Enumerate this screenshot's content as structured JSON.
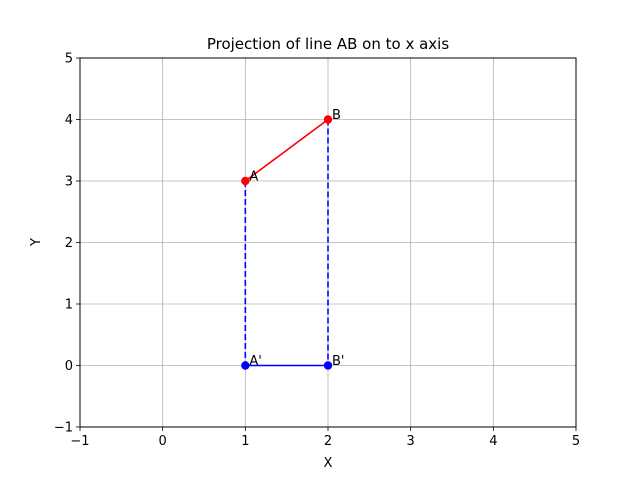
{
  "chart_data": {
    "type": "line",
    "title": "Projection of  line AB on to x axis",
    "xlabel": "X",
    "ylabel": "Y",
    "xlim": [
      -1,
      5
    ],
    "ylim": [
      -1,
      5
    ],
    "xticks": [
      "−1",
      "0",
      "1",
      "2",
      "3",
      "4",
      "5"
    ],
    "yticks": [
      "−1",
      "0",
      "1",
      "2",
      "3",
      "4",
      "5"
    ],
    "grid": true,
    "series": [
      {
        "color": "#ff0000",
        "style": "solid",
        "marker": "circle",
        "x": [
          1,
          2
        ],
        "y": [
          3,
          4
        ]
      },
      {
        "color": "#0000ff",
        "style": "solid",
        "marker": "circle",
        "x": [
          1,
          2
        ],
        "y": [
          0,
          0
        ]
      },
      {
        "color": "#0000ff",
        "style": "dashed",
        "marker": "none",
        "x": [
          1,
          1
        ],
        "y": [
          3,
          0
        ]
      },
      {
        "color": "#0000ff",
        "style": "dashed",
        "marker": "none",
        "x": [
          2,
          2
        ],
        "y": [
          4,
          0
        ]
      }
    ],
    "annotations": [
      {
        "text": "A",
        "x": 1,
        "y": 3
      },
      {
        "text": "B",
        "x": 2,
        "y": 4
      },
      {
        "text": "A'",
        "x": 1,
        "y": 0
      },
      {
        "text": "B'",
        "x": 2,
        "y": 0
      }
    ]
  }
}
